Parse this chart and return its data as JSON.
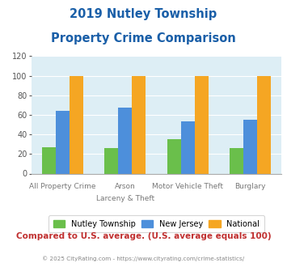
{
  "title_line1": "2019 Nutley Township",
  "title_line2": "Property Crime Comparison",
  "cat_labels_top": [
    "",
    "Arson",
    "Motor Vehicle Theft",
    ""
  ],
  "cat_labels_bot": [
    "All Property Crime",
    "Larceny & Theft",
    "",
    "Burglary"
  ],
  "nutley": [
    27,
    26,
    35,
    26
  ],
  "new_jersey": [
    64,
    67,
    53,
    55
  ],
  "national": [
    100,
    100,
    100,
    100
  ],
  "color_nutley": "#6abf4b",
  "color_nj": "#4d8fdb",
  "color_national": "#f5a623",
  "ylim": [
    0,
    120
  ],
  "yticks": [
    0,
    20,
    40,
    60,
    80,
    100,
    120
  ],
  "bg_color": "#ddeef5",
  "legend_labels": [
    "Nutley Township",
    "New Jersey",
    "National"
  ],
  "footer_text": "Compared to U.S. average. (U.S. average equals 100)",
  "copyright_text": "© 2025 CityRating.com - https://www.cityrating.com/crime-statistics/",
  "title_color": "#1a5fa8",
  "footer_color": "#c03030",
  "copyright_color": "#888888"
}
